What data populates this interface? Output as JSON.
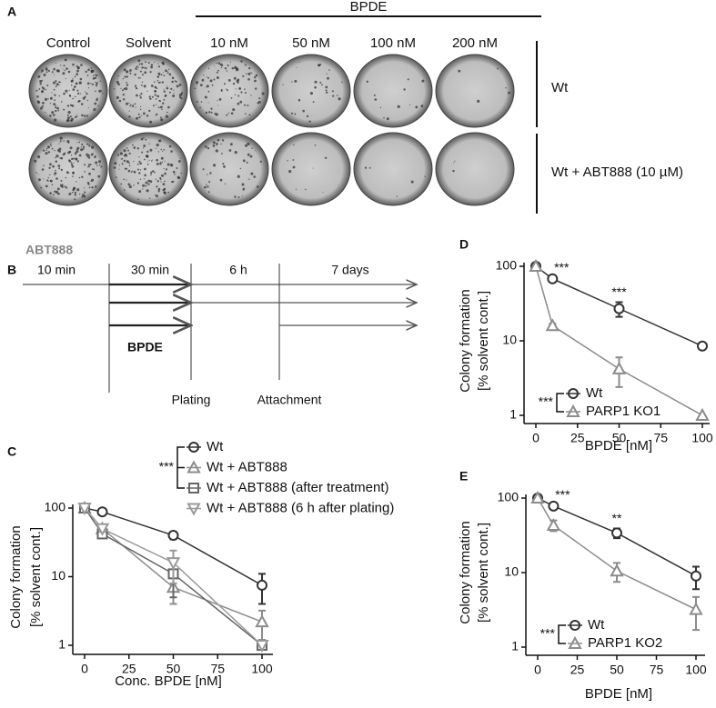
{
  "panel_a": {
    "label": "A",
    "header": "BPDE",
    "columns": [
      "Control",
      "Solvent",
      "10 nM",
      "50 nM",
      "100 nM",
      "200 nM"
    ],
    "rows": [
      "Wt",
      "Wt + ABT888 (10 µM)"
    ]
  },
  "panel_b": {
    "label": "B",
    "inhibitor": "ABT888",
    "phases": [
      "10 min",
      "30 min",
      "6 h",
      "7 days"
    ],
    "treatment": "BPDE",
    "events": [
      "Plating",
      "Attachment"
    ]
  },
  "chart_data": [
    {
      "type": "line",
      "label": "C",
      "xlabel": "Conc. BPDE [nM]",
      "ylabel": [
        "Colony formation",
        "[% solvent cont.]"
      ],
      "x": [
        0,
        10,
        50,
        100
      ],
      "xlim": [
        0,
        100
      ],
      "xticks": [
        0,
        25,
        50,
        75,
        100
      ],
      "ylim": [
        1,
        100
      ],
      "yticks": [
        1,
        10,
        100
      ],
      "log_y": true,
      "legend_significance": "***",
      "series": [
        {
          "name": "Wt",
          "color": "#333333",
          "marker": "circle",
          "values": [
            100,
            88,
            40,
            7.5
          ],
          "errors": [
            0,
            3,
            5,
            3.5
          ]
        },
        {
          "name": "Wt + ABT888",
          "color": "#8c8c8c",
          "marker": "triangle-up",
          "values": [
            100,
            50,
            7,
            2.2
          ],
          "errors": [
            0,
            5,
            3,
            1
          ]
        },
        {
          "name": "Wt + ABT888 (after treatment)",
          "color": "#666666",
          "marker": "square",
          "values": [
            100,
            42,
            11,
            1
          ],
          "errors": [
            0,
            4,
            6,
            0
          ]
        },
        {
          "name": "Wt + ABT888 (6 h after plating)",
          "color": "#9a9a9a",
          "marker": "triangle-down",
          "values": [
            100,
            50,
            16,
            1
          ],
          "errors": [
            0,
            5,
            8,
            0
          ]
        }
      ]
    },
    {
      "type": "line",
      "label": "D",
      "xlabel": "BPDE [nM]",
      "ylabel": [
        "Colony formation",
        "[% solvent cont.]"
      ],
      "x": [
        0,
        10,
        50,
        100
      ],
      "xlim": [
        0,
        100
      ],
      "xticks": [
        0,
        25,
        50,
        75,
        100
      ],
      "ylim": [
        1,
        100
      ],
      "yticks": [
        1,
        10,
        100
      ],
      "log_y": true,
      "legend_significance": "***",
      "significance": [
        {
          "x": 10,
          "text": "***"
        },
        {
          "x": 50,
          "text": "***"
        }
      ],
      "series": [
        {
          "name": "Wt",
          "color": "#333333",
          "marker": "circle",
          "values": [
            100,
            68,
            27,
            8.5
          ],
          "errors": [
            0,
            3,
            6,
            0.5
          ]
        },
        {
          "name": "PARP1 KO1",
          "color": "#8c8c8c",
          "marker": "triangle-up",
          "values": [
            100,
            16,
            4.2,
            1
          ],
          "errors": [
            0,
            1,
            1.8,
            0
          ]
        }
      ]
    },
    {
      "type": "line",
      "label": "E",
      "xlabel": "BPDE [nM]",
      "ylabel": [
        "Colony formation",
        "[% solvent cont.]"
      ],
      "x": [
        0,
        10,
        50,
        100
      ],
      "xlim": [
        0,
        100
      ],
      "xticks": [
        0,
        25,
        50,
        75,
        100
      ],
      "ylim": [
        1,
        100
      ],
      "yticks": [
        1,
        10,
        100
      ],
      "log_y": true,
      "legend_significance": "***",
      "significance": [
        {
          "x": 10,
          "text": "***"
        },
        {
          "x": 50,
          "text": "**"
        }
      ],
      "series": [
        {
          "name": "Wt",
          "color": "#333333",
          "marker": "circle",
          "values": [
            100,
            78,
            34,
            9
          ],
          "errors": [
            0,
            4,
            5,
            3
          ]
        },
        {
          "name": "PARP1 KO2",
          "color": "#8c8c8c",
          "marker": "triangle-up",
          "values": [
            100,
            43,
            10.5,
            3.2
          ],
          "errors": [
            0,
            7,
            3,
            1.5
          ]
        }
      ]
    }
  ]
}
